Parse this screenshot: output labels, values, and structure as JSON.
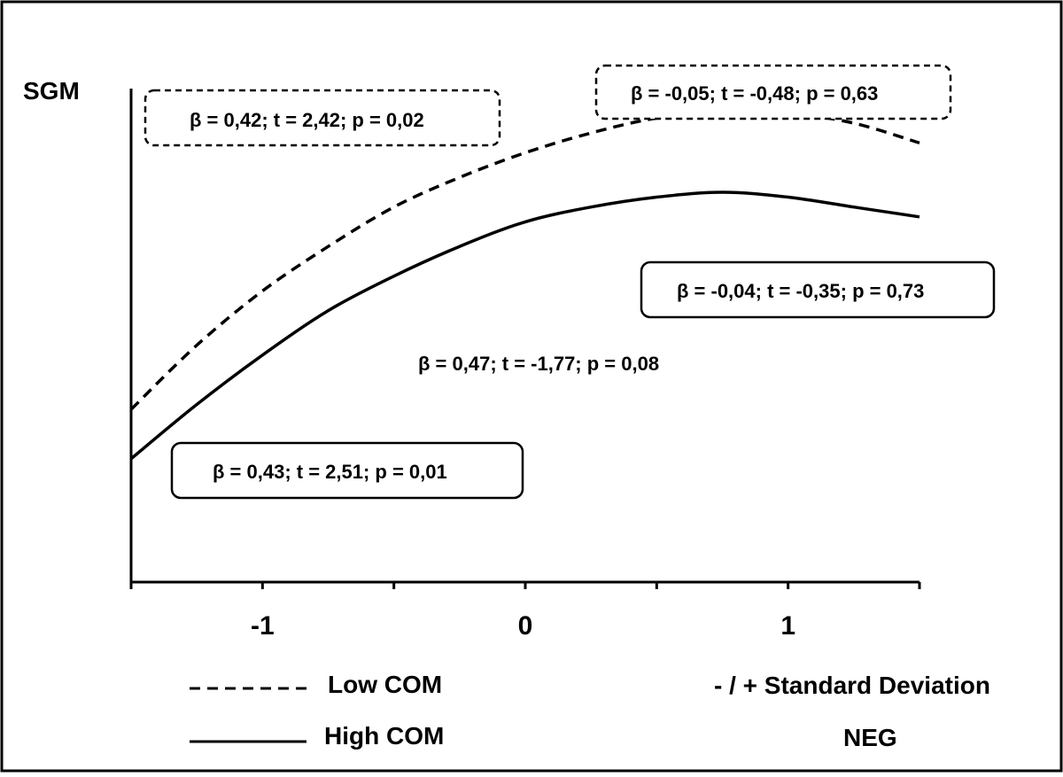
{
  "chart_data": {
    "type": "line",
    "ylabel": "SGM",
    "xlabel": "NEG",
    "xlabel_note": "- / + Standard Deviation",
    "xlim": [
      -1.5,
      1.5
    ],
    "ylim": [
      0,
      1
    ],
    "x_ticks": [
      -1.5,
      -1,
      -0.5,
      0,
      0.5,
      1,
      1.5
    ],
    "x_tick_labels": [
      "-1",
      "0",
      "1"
    ],
    "x_tick_label_values": [
      -1,
      0,
      1
    ],
    "grid": false,
    "legend_position": "bottom-left",
    "series": [
      {
        "name": "Low COM",
        "style": "dashed",
        "color": "#000000",
        "x": [
          -1.5,
          -1.25,
          -1.0,
          -0.75,
          -0.5,
          -0.25,
          0.0,
          0.25,
          0.5,
          0.75,
          1.0,
          1.25,
          1.5
        ],
        "y": [
          0.35,
          0.48,
          0.59,
          0.68,
          0.76,
          0.82,
          0.87,
          0.91,
          0.94,
          0.95,
          0.95,
          0.93,
          0.89
        ]
      },
      {
        "name": "High COM",
        "style": "solid",
        "color": "#000000",
        "x": [
          -1.5,
          -1.25,
          -1.0,
          -0.75,
          -0.5,
          -0.25,
          0.0,
          0.25,
          0.5,
          0.75,
          1.0,
          1.25,
          1.5
        ],
        "y": [
          0.25,
          0.36,
          0.46,
          0.55,
          0.62,
          0.68,
          0.73,
          0.76,
          0.78,
          0.79,
          0.78,
          0.76,
          0.74
        ]
      }
    ],
    "annotations": [
      {
        "text": "β = 0,42; t = 2,42; p = 0,02",
        "box": "dashed"
      },
      {
        "text": "β = -0,05; t = -0,48; p = 0,63",
        "box": "dashed"
      },
      {
        "text": "β = -0,04; t = -0,35; p = 0,73",
        "box": "solid"
      },
      {
        "text": "β = 0,47; t = -1,77; p = 0,08",
        "box": "none"
      },
      {
        "text": "β = 0,43; t = 2,51; p = 0,01",
        "box": "solid"
      }
    ]
  }
}
